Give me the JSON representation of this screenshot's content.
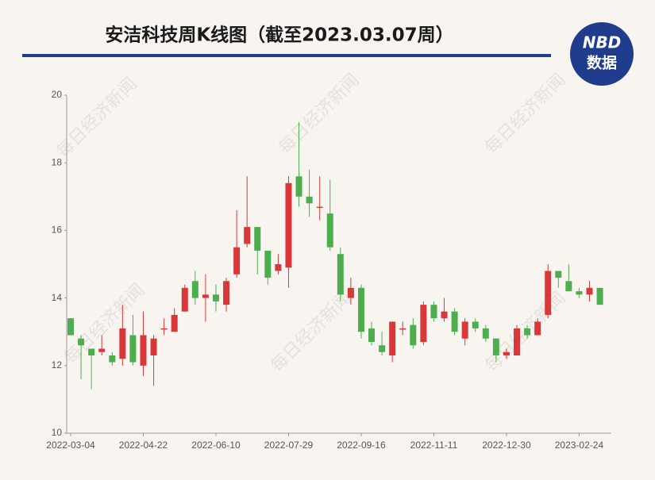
{
  "chart_data": {
    "type": "candlestick",
    "title": "安洁科技周K线图（截至2023.03.07周）",
    "logo": {
      "top": "NBD",
      "bottom": "数据"
    },
    "watermark": "每日经济新闻",
    "categories": [
      "2022-03-04",
      null,
      null,
      null,
      null,
      null,
      null,
      "2022-04-22",
      null,
      null,
      null,
      null,
      null,
      null,
      "2022-06-10",
      null,
      null,
      null,
      null,
      null,
      null,
      "2022-07-29",
      null,
      null,
      null,
      null,
      null,
      null,
      "2022-09-16",
      null,
      null,
      null,
      null,
      null,
      null,
      "2022-11-11",
      null,
      null,
      null,
      null,
      null,
      null,
      "2022-12-30",
      null,
      null,
      null,
      null,
      null,
      null,
      "2023-02-24",
      null,
      null
    ],
    "open": [
      13.4,
      12.8,
      12.5,
      12.4,
      12.3,
      12.2,
      12.9,
      12.0,
      12.3,
      13.1,
      13.0,
      13.6,
      14.5,
      14.0,
      14.1,
      13.8,
      14.7,
      15.6,
      16.1,
      15.4,
      14.8,
      14.9,
      17.6,
      17.0,
      16.7,
      16.5,
      15.3,
      14.0,
      14.3,
      13.1,
      12.6,
      12.3,
      13.1,
      13.2,
      12.7,
      13.8,
      13.4,
      13.6,
      12.8,
      13.3,
      13.1,
      12.8,
      12.3,
      12.3,
      13.1,
      12.9,
      13.5,
      14.8,
      14.5,
      14.2,
      14.1,
      14.3
    ],
    "high": [
      13.4,
      12.9,
      12.5,
      12.9,
      12.4,
      13.8,
      13.5,
      13.6,
      12.9,
      13.4,
      13.7,
      14.4,
      14.8,
      14.7,
      14.4,
      14.6,
      16.6,
      17.6,
      16.1,
      15.4,
      15.3,
      17.6,
      19.2,
      17.8,
      17.6,
      17.5,
      15.5,
      14.6,
      14.4,
      13.3,
      13.0,
      13.3,
      13.3,
      13.4,
      13.9,
      13.9,
      14.0,
      13.7,
      13.4,
      13.4,
      13.2,
      12.8,
      12.5,
      13.2,
      13.2,
      13.4,
      15.0,
      14.8,
      15.0,
      14.3,
      14.5,
      14.3
    ],
    "low": [
      12.9,
      11.6,
      11.3,
      12.3,
      12.0,
      12.0,
      12.0,
      11.7,
      11.4,
      12.9,
      13.0,
      13.6,
      13.8,
      13.3,
      13.6,
      13.6,
      14.6,
      15.5,
      14.7,
      14.4,
      14.7,
      14.3,
      16.7,
      16.4,
      16.3,
      15.4,
      13.9,
      13.8,
      12.8,
      12.6,
      12.3,
      12.1,
      12.9,
      12.5,
      12.6,
      13.3,
      13.3,
      12.9,
      12.6,
      13.0,
      12.7,
      12.1,
      12.2,
      12.3,
      12.8,
      12.9,
      13.4,
      14.3,
      14.2,
      14.0,
      13.9,
      13.8
    ],
    "close": [
      12.9,
      12.6,
      12.3,
      12.5,
      12.1,
      13.1,
      12.1,
      12.9,
      12.8,
      13.1,
      13.5,
      14.3,
      14.0,
      14.1,
      13.9,
      14.5,
      15.5,
      16.1,
      15.4,
      14.6,
      15.0,
      17.4,
      17.0,
      16.8,
      16.7,
      15.5,
      14.1,
      14.3,
      13.0,
      12.7,
      12.4,
      13.3,
      13.1,
      12.6,
      13.8,
      13.4,
      13.6,
      13.0,
      13.3,
      13.1,
      12.8,
      12.3,
      12.4,
      13.1,
      12.9,
      13.3,
      14.8,
      14.6,
      14.2,
      14.1,
      14.3,
      13.8
    ],
    "up_color": "#d9383a",
    "down_color": "#4cae4f",
    "ylim": [
      10,
      20
    ],
    "yticks": [
      10,
      12,
      14,
      16,
      18,
      20
    ],
    "grid": false
  }
}
